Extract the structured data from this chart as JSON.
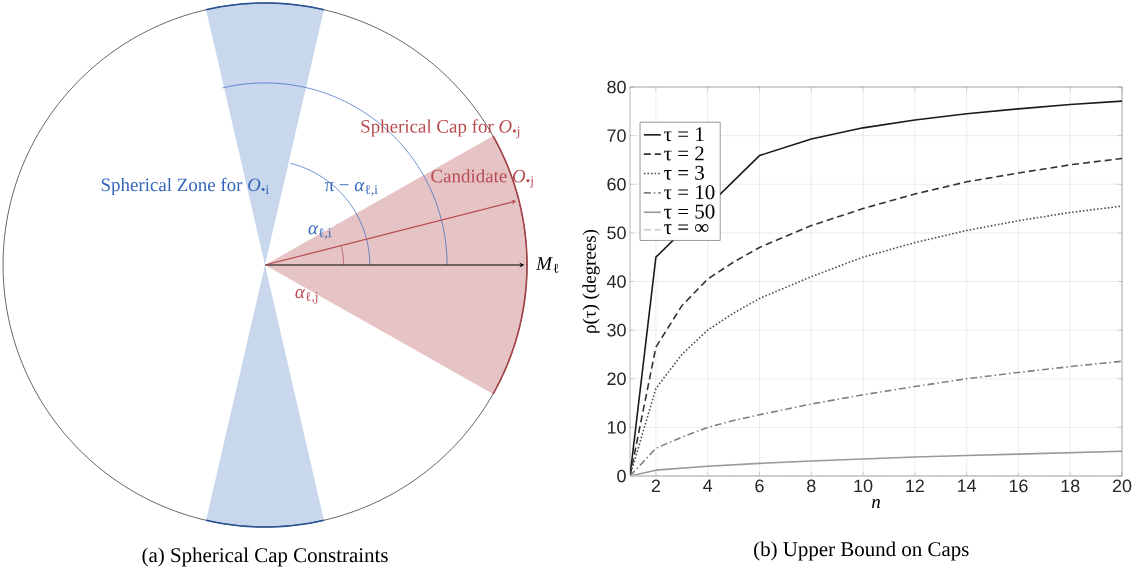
{
  "chart_data": [
    {
      "type": "other",
      "title": "(a) Spherical Cap Constraints",
      "annotations": [
        "Spherical Cap for *O*$_{•j}$",
        "Spherical Zone for *O*$_{•i}$",
        "Candidate *O*$_{•j}$",
        "π − *α*$_{ℓ,i}$",
        "*α*$_{ℓ,i}$",
        "*α*$_{ℓ,j}$",
        "*M*$_{ℓ}$"
      ]
    },
    {
      "type": "line",
      "title": "(b) Upper Bound on Caps",
      "xlabel": "n",
      "ylabel": "ρ(τ) (degrees)",
      "xlim": [
        1,
        20
      ],
      "ylim": [
        0,
        80
      ],
      "xticks": [
        2,
        4,
        6,
        8,
        10,
        12,
        14,
        16,
        18,
        20
      ],
      "yticks": [
        0,
        10,
        20,
        30,
        40,
        50,
        60,
        70,
        80
      ],
      "grid": true,
      "legend": "top left",
      "x": [
        1,
        2,
        3,
        4,
        5,
        6,
        8,
        10,
        12,
        14,
        16,
        18,
        20
      ],
      "series": [
        {
          "name": "τ = 1",
          "color": "#1a1a1a",
          "line_style": "solid",
          "values": [
            0,
            45,
            null,
            null,
            null,
            65.9,
            69.3,
            71.6,
            73.2,
            74.5,
            75.5,
            76.4,
            77.1
          ]
        },
        {
          "name": "τ = 2",
          "color": "#333333",
          "line_style": "dashed",
          "values": [
            0,
            26.5,
            35,
            40.5,
            44,
            47,
            51.5,
            55,
            58,
            60.5,
            62.3,
            64,
            65.3
          ]
        },
        {
          "name": "τ = 3",
          "color": "#4d4d4d",
          "line_style": "dotted",
          "values": [
            0,
            18,
            25,
            30,
            33.5,
            36.5,
            41,
            45,
            48,
            50.5,
            52.5,
            54.2,
            55.5
          ]
        },
        {
          "name": "τ = 10",
          "color": "#808080",
          "line_style": "dashdot",
          "values": [
            0,
            5.7,
            8,
            10,
            11.4,
            12.6,
            14.8,
            16.7,
            18.4,
            20,
            21.3,
            22.5,
            23.6
          ]
        },
        {
          "name": "τ = 50",
          "color": "#999999",
          "line_style": "solid",
          "values": [
            0,
            1.2,
            1.6,
            2,
            2.3,
            2.6,
            3.1,
            3.5,
            3.9,
            4.2,
            4.5,
            4.8,
            5.1
          ]
        },
        {
          "name": "τ = ∞",
          "color": "#c8c8c8",
          "line_style": "dashed",
          "values": [
            0,
            0,
            0,
            0,
            0,
            0,
            0,
            0,
            0,
            0,
            0,
            0,
            0
          ]
        }
      ]
    }
  ]
}
